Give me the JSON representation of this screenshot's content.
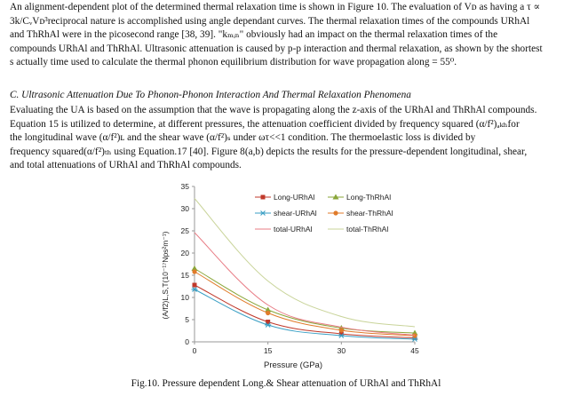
{
  "paragraph1": {
    "lines": [
      "An alignment-dependent plot of the determined thermal relaxation time is shown in Figure 10. The evaluation of Vᴅ as having a τ ∝",
      "3k/CᵥVᴅ³reciprocal nature is accomplished using angle dependant curves. The thermal relaxation times of the compounds URhAl",
      "and ThRhAl were in the picosecond range [38, 39]. \"kₘᵢₙ\" obviously had an impact on the thermal relaxation times of the",
      "compounds URhAl and ThRhAl. Ultrasonic attenuation is caused by p-p interaction and thermal relaxation, as shown by the shortest",
      "s actually time used to calculate the thermal phonon equilibrium distribution for wave propagation along = 55⁰."
    ]
  },
  "section_heading": "C.   Ultrasonic Attenuation Due To Phonon-Phonon Interaction And Thermal Relaxation Phenomena",
  "paragraph2": {
    "lines": [
      "Evaluating the UA is based on the assumption that the wave is propagating along the z-axis of the URhAl and ThRhAl compounds.",
      "Equation 15 is utilized to determine, at different pressures, the attenuation coefficient divided by frequency squared (α/f²)ₐₖₕfor",
      "the longitudinal wave (α/f²)ʟ and the shear wave (α/f²)ₛ  under ωτ<<1   condition. The thermoelastic loss is divided by",
      "frequency squared(α/f²)ₜₕ using Equation.17 [40]. Figure 8(a,b) depicts the results for the pressure-dependent longitudinal, shear,",
      "and total attenuations of URhAl and ThRhAl compounds."
    ]
  },
  "caption": "Fig.10. Pressure dependent Long.& Shear attenuation of URhAl and ThRhAl",
  "chart_data": {
    "type": "line",
    "xlabel": "Pressure (GPa)",
    "ylabel": "(A/f2)L,S,T(10⁻¹⁷Nps²m⁻¹)",
    "x": [
      0,
      15,
      30,
      45
    ],
    "xticks": [
      "0",
      "15",
      "30",
      "45"
    ],
    "yticks": [
      "0",
      "5",
      "10",
      "15",
      "20",
      "25",
      "30",
      "35"
    ],
    "xlim": [
      0,
      45
    ],
    "ylim": [
      0,
      35
    ],
    "legend_position": "top-right",
    "series": [
      {
        "name": "Long-URhAl",
        "values": [
          12.8,
          4.5,
          1.8,
          0.9
        ],
        "color": "#c0392b",
        "marker": "square"
      },
      {
        "name": "Long-ThRhAl",
        "values": [
          16.5,
          7.2,
          3.1,
          2.0
        ],
        "color": "#8aa63a",
        "marker": "triangle"
      },
      {
        "name": "shear-URhAl",
        "values": [
          11.8,
          3.8,
          1.4,
          0.6
        ],
        "color": "#3a9fc4",
        "marker": "star"
      },
      {
        "name": "shear-ThRhAl",
        "values": [
          15.8,
          6.5,
          2.6,
          1.4
        ],
        "color": "#e07b2a",
        "marker": "circle"
      },
      {
        "name": "total-URhAl",
        "values": [
          24.6,
          8.3,
          3.3,
          1.5
        ],
        "color": "#e87c85",
        "marker": "none"
      },
      {
        "name": "total-ThRhAl",
        "values": [
          32.3,
          13.7,
          5.7,
          3.4
        ],
        "color": "#c9d49a",
        "marker": "none"
      }
    ]
  }
}
